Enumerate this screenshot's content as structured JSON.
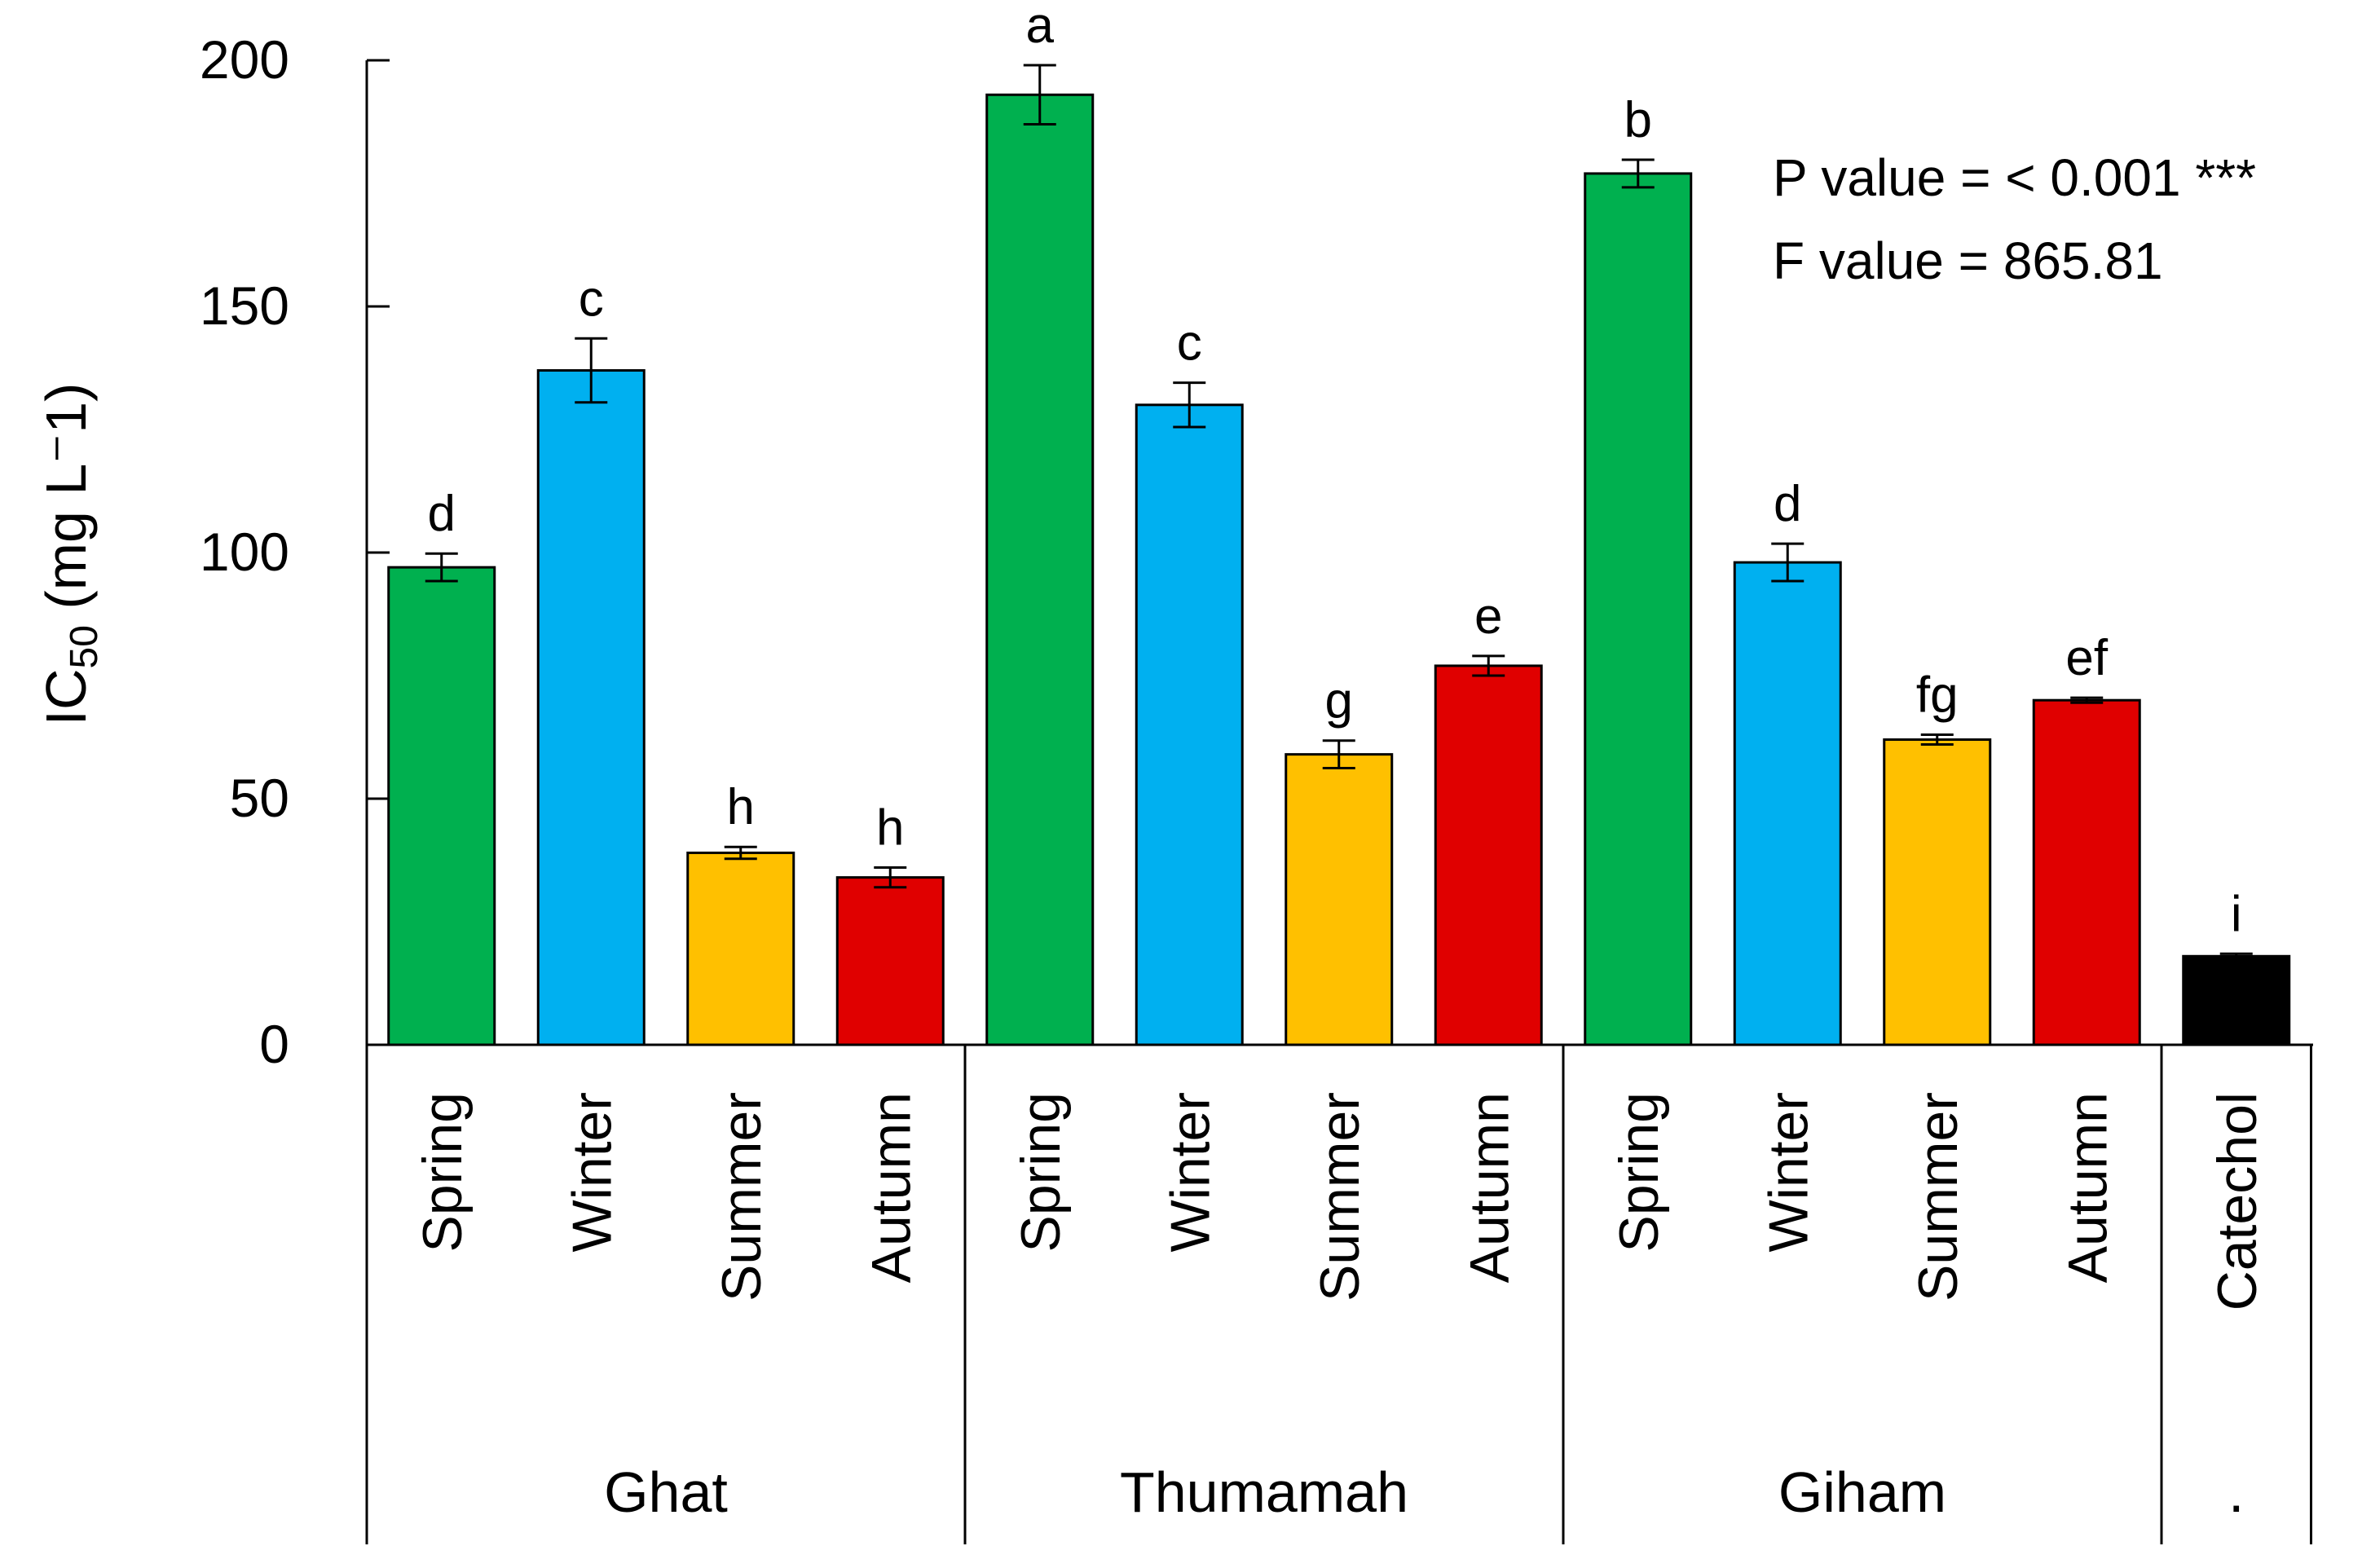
{
  "chart_data": {
    "type": "bar",
    "ylabel": {
      "main": "IC",
      "sub": "50",
      "units": " (mg L⁻1)"
    },
    "ylim": [
      0,
      200
    ],
    "yticks": [
      0,
      50,
      100,
      150,
      200
    ],
    "colors": {
      "Spring": "#00B04F",
      "Winter": "#00B0F0",
      "Summer": "#FFC000",
      "Autumn": "#E00000",
      "Catechol": "#000000"
    },
    "groups": [
      {
        "name": "Ghat",
        "bars": [
          {
            "label": "Spring",
            "value": 97,
            "error": 2.8,
            "letter": "d"
          },
          {
            "label": "Winter",
            "value": 137,
            "error": 6.5,
            "letter": "c"
          },
          {
            "label": "Summer",
            "value": 39,
            "error": 1.2,
            "letter": "h"
          },
          {
            "label": "Autumn",
            "value": 34,
            "error": 2.0,
            "letter": "h"
          }
        ]
      },
      {
        "name": "Thumamah",
        "bars": [
          {
            "label": "Spring",
            "value": 193,
            "error": 6.0,
            "letter": "a"
          },
          {
            "label": "Winter",
            "value": 130,
            "error": 4.5,
            "letter": "c"
          },
          {
            "label": "Summer",
            "value": 59,
            "error": 2.8,
            "letter": "g"
          },
          {
            "label": "Autumn",
            "value": 77,
            "error": 2.0,
            "letter": "e"
          }
        ]
      },
      {
        "name": "Giham",
        "bars": [
          {
            "label": "Spring",
            "value": 177,
            "error": 2.8,
            "letter": "b"
          },
          {
            "label": "Winter",
            "value": 98,
            "error": 3.8,
            "letter": "d"
          },
          {
            "label": "Summer",
            "value": 62,
            "error": 1.0,
            "letter": "fg"
          },
          {
            "label": "Autumn",
            "value": 70,
            "error": 0.5,
            "letter": "ef"
          }
        ]
      },
      {
        "name": ".",
        "bars": [
          {
            "label": "Catechol",
            "value": 18,
            "error": 0.5,
            "letter": "i"
          }
        ]
      }
    ],
    "annotations": [
      "P value = < 0.001 ***",
      "F value = 865.81"
    ]
  }
}
